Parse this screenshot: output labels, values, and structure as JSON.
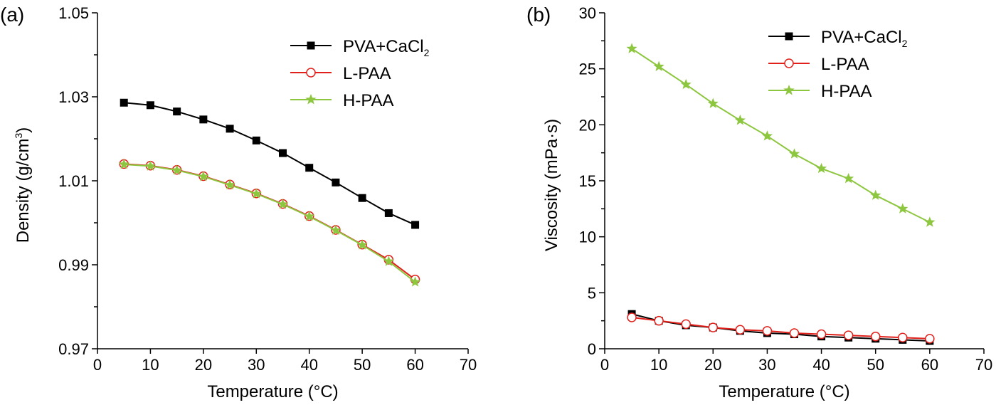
{
  "chart_data": [
    {
      "type": "line",
      "panel_label": "(a)",
      "xlabel": "Temperature (°C)",
      "ylabel_main": "Density (g/cm",
      "ylabel_sup": "3",
      "ylabel_end": ")",
      "xlim": [
        0,
        70
      ],
      "ylim": [
        0.97,
        1.05
      ],
      "xticks": [
        0,
        10,
        20,
        30,
        40,
        50,
        60,
        70
      ],
      "xtick_labels": [
        "0",
        "10",
        "20",
        "30",
        "40",
        "50",
        "60",
        "70"
      ],
      "yticks": [
        0.97,
        0.99,
        1.01,
        1.03,
        1.05
      ],
      "ytick_labels": [
        "0.97",
        "0.99",
        "1.01",
        "1.03",
        "1.05"
      ],
      "yminor": [
        0.98,
        1.0,
        1.02,
        1.04
      ],
      "grid": false,
      "legend_position": "top-right",
      "series": [
        {
          "name": "PVA+CaCl",
          "name_sub": "2",
          "color": "#000000",
          "marker": "filled-square",
          "x": [
            5,
            10,
            15,
            20,
            25,
            30,
            35,
            40,
            45,
            50,
            55,
            60
          ],
          "y": [
            1.0286,
            1.028,
            1.0265,
            1.0246,
            1.0224,
            1.0196,
            1.0166,
            1.0131,
            1.0096,
            1.0059,
            1.0023,
            0.9995
          ]
        },
        {
          "name": "L-PAA",
          "color": "#e0201b",
          "marker": "open-circle",
          "x": [
            5,
            10,
            15,
            20,
            25,
            30,
            35,
            40,
            45,
            50,
            55,
            60
          ],
          "y": [
            1.014,
            1.0136,
            1.0126,
            1.0111,
            1.0091,
            1.007,
            1.0045,
            1.0016,
            0.9983,
            0.9948,
            0.9912,
            0.9865
          ]
        },
        {
          "name": "H-PAA",
          "color": "#8dc63f",
          "marker": "star",
          "x": [
            5,
            10,
            15,
            20,
            25,
            30,
            35,
            40,
            45,
            50,
            55,
            60
          ],
          "y": [
            1.0139,
            1.0135,
            1.0125,
            1.011,
            1.009,
            1.0069,
            1.0044,
            1.0015,
            0.9982,
            0.9947,
            0.9908,
            0.9859
          ]
        }
      ]
    },
    {
      "type": "line",
      "panel_label": "(b)",
      "xlabel": "Temperature (°C)",
      "ylabel_main": "Viscosity (mPa·s)",
      "ylabel_sup": "",
      "ylabel_end": "",
      "xlim": [
        0,
        70
      ],
      "ylim": [
        0,
        30
      ],
      "xticks": [
        0,
        10,
        20,
        30,
        40,
        50,
        60,
        70
      ],
      "xtick_labels": [
        "0",
        "10",
        "20",
        "30",
        "40",
        "50",
        "60",
        "70"
      ],
      "yticks": [
        0,
        5,
        10,
        15,
        20,
        25,
        30
      ],
      "ytick_labels": [
        "0",
        "5",
        "10",
        "15",
        "20",
        "25",
        "30"
      ],
      "yminor": [
        2.5,
        7.5,
        12.5,
        17.5,
        22.5,
        27.5
      ],
      "grid": false,
      "legend_position": "top-right",
      "series": [
        {
          "name": "PVA+CaCl",
          "name_sub": "2",
          "color": "#000000",
          "marker": "filled-square",
          "x": [
            5,
            10,
            15,
            20,
            25,
            30,
            35,
            40,
            45,
            50,
            55,
            60
          ],
          "y": [
            3.1,
            2.5,
            2.1,
            1.9,
            1.6,
            1.4,
            1.3,
            1.1,
            1.0,
            0.9,
            0.8,
            0.7
          ]
        },
        {
          "name": "L-PAA",
          "color": "#e0201b",
          "marker": "open-circle",
          "x": [
            5,
            10,
            15,
            20,
            25,
            30,
            35,
            40,
            45,
            50,
            55,
            60
          ],
          "y": [
            2.8,
            2.5,
            2.2,
            1.9,
            1.7,
            1.6,
            1.4,
            1.3,
            1.2,
            1.1,
            1.0,
            0.9
          ]
        },
        {
          "name": "H-PAA",
          "color": "#8dc63f",
          "marker": "star",
          "x": [
            5,
            10,
            15,
            20,
            25,
            30,
            35,
            40,
            45,
            50,
            55,
            60
          ],
          "y": [
            26.8,
            25.2,
            23.6,
            21.9,
            20.4,
            19.0,
            17.4,
            16.1,
            15.2,
            13.7,
            12.5,
            11.3
          ]
        }
      ]
    }
  ]
}
